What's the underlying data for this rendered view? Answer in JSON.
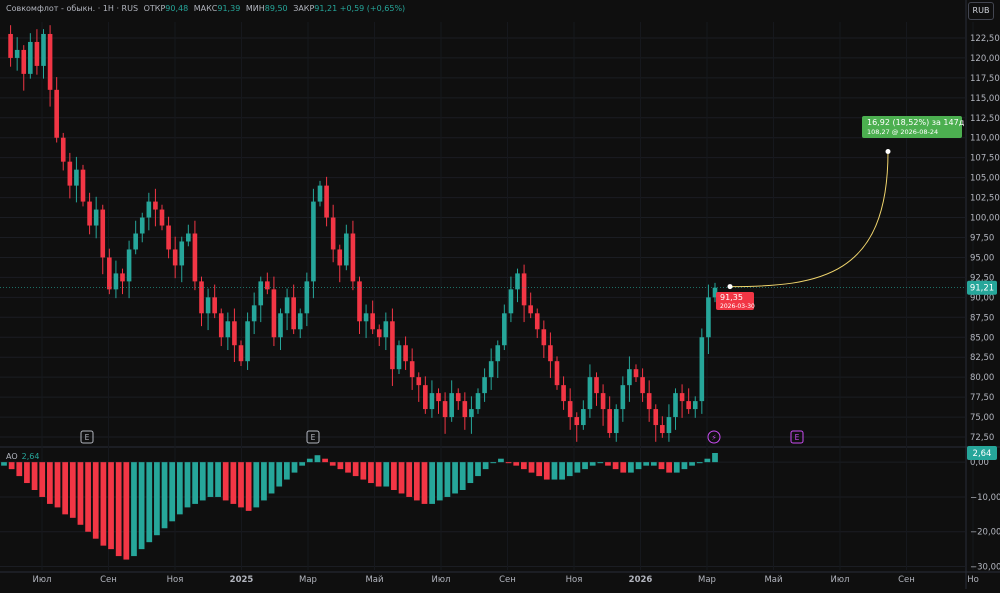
{
  "legend": {
    "symbol": "Совкомфлот - обыкн. · 1Н · RUS",
    "open_label": "ОТКР",
    "open": "90,48",
    "high_label": "МАКС",
    "high": "91,39",
    "low_label": "МИН",
    "low": "89,50",
    "close_label": "ЗАКР",
    "close": "91,21",
    "change": "+0,59 (+0,65%)"
  },
  "currency": "RUB",
  "ao_legend": {
    "label": "AO",
    "value": "2,64"
  },
  "colors": {
    "up": "#26a69a",
    "down": "#f23645",
    "ao_up": "#26a69a",
    "ao_down": "#f23645",
    "forecast_line": "#f0d56d",
    "forecast_label": "#4caf50"
  },
  "forecast": {
    "text": "16,92 (18,52%) за 147д",
    "subtext": "108,27 @ 2026-08-24",
    "start_label": "91,35",
    "start_date": "2026-03-30",
    "target": 108.27,
    "start": 91.35
  },
  "price_tag": "91,21",
  "ao_tag": "2,64",
  "chart_data": [
    {
      "type": "candlestick",
      "ylim": [
        71.5,
        124.5
      ],
      "yticks": [
        "122,50",
        "120,00",
        "117,50",
        "115,00",
        "112,50",
        "110,00",
        "107,50",
        "105,00",
        "102,50",
        "100,00",
        "97,50",
        "95,00",
        "92,50",
        "90,00",
        "87,50",
        "85,00",
        "82,50",
        "80,00",
        "77,50",
        "75,00",
        "72,50"
      ],
      "ytick_values": [
        122.5,
        120,
        117.5,
        115,
        112.5,
        110,
        107.5,
        105,
        102.5,
        100,
        97.5,
        95,
        92.5,
        90,
        87.5,
        85,
        82.5,
        80,
        77.5,
        75,
        72.5
      ],
      "xticks": [
        "Июл",
        "Сен",
        "Ноя",
        "2025",
        "Мар",
        "Май",
        "Июл",
        "Сен",
        "Ноя",
        "2026",
        "Мар",
        "Май",
        "Июл",
        "Сен",
        "Но"
      ],
      "closes": [
        123,
        120,
        121,
        118,
        122,
        119,
        123,
        116,
        110,
        107,
        104,
        106,
        102,
        99,
        101,
        95,
        91,
        93,
        92,
        96,
        98,
        100,
        102,
        101,
        99,
        96,
        94,
        97,
        98,
        92,
        88,
        90,
        88,
        85,
        87,
        84,
        82,
        87,
        89,
        92,
        91,
        85,
        88,
        90,
        86,
        88,
        92,
        102,
        104,
        100,
        96,
        94,
        98,
        92,
        87,
        88,
        86,
        85,
        87,
        81,
        84,
        82,
        80,
        79,
        76,
        78,
        77,
        75,
        78,
        77,
        75,
        76,
        78,
        80,
        82,
        84,
        88,
        91,
        93,
        89,
        88,
        86,
        84,
        82,
        79,
        77,
        75,
        74,
        76,
        80,
        78,
        76,
        73,
        76,
        79,
        81,
        80,
        78,
        76,
        74,
        73,
        75,
        78,
        77,
        76,
        77,
        85,
        90,
        91.21
      ]
    },
    {
      "type": "bar",
      "name": "AO",
      "ylim": [
        -31,
        3.5
      ],
      "yticks": [
        "0,00",
        "−10,00",
        "−20,00",
        "−30,00"
      ],
      "ytick_values": [
        0,
        -10,
        -20,
        -30
      ],
      "values": [
        -1,
        -2,
        -4,
        -6,
        -8,
        -10,
        -12,
        -13,
        -15,
        -16,
        -18,
        -20,
        -22,
        -24,
        -25,
        -27,
        -28,
        -27,
        -25,
        -23,
        -21,
        -19,
        -17,
        -15,
        -13,
        -12,
        -11,
        -10,
        -10,
        -11,
        -12,
        -13,
        -14,
        -13,
        -11,
        -9,
        -7,
        -5,
        -3,
        -1,
        1,
        2,
        1,
        -1,
        -2,
        -3,
        -4,
        -5,
        -6,
        -7,
        -7,
        -8,
        -9,
        -10,
        -11,
        -12,
        -12,
        -11,
        -10,
        -9,
        -8,
        -6,
        -4,
        -2,
        0,
        1,
        0,
        -1,
        -2,
        -3,
        -4,
        -5,
        -5,
        -5,
        -4,
        -3,
        -2,
        -1,
        0,
        -1,
        -2,
        -3,
        -3,
        -2,
        -1,
        -1,
        -2,
        -3,
        -3,
        -2,
        -1,
        0,
        1,
        2.64
      ]
    }
  ]
}
